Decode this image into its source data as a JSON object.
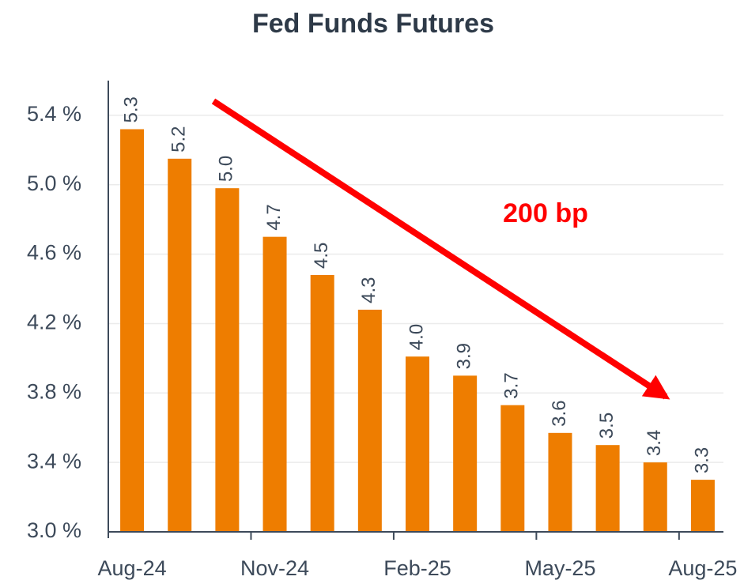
{
  "chart_data": {
    "type": "bar",
    "title": "Fed Funds Futures",
    "categories": [
      "Aug-24",
      null,
      null,
      "Nov-24",
      null,
      null,
      "Feb-25",
      null,
      null,
      "May-25",
      null,
      null,
      "Aug-25"
    ],
    "values": [
      5.32,
      5.15,
      4.98,
      4.7,
      4.48,
      4.28,
      4.01,
      3.9,
      3.73,
      3.57,
      3.5,
      3.4,
      3.3
    ],
    "value_labels": [
      "5.3",
      "5.2",
      "5.0",
      "4.7",
      "4.5",
      "4.3",
      "4.0",
      "3.9",
      "3.7",
      "3.6",
      "3.5",
      "3.4",
      "3.3"
    ],
    "color": "#ee7d00",
    "ylim": [
      3.0,
      5.6
    ],
    "yticks": [
      {
        "value": 3.0,
        "label": "3.0 %"
      },
      {
        "value": 3.4,
        "label": "3.4 %"
      },
      {
        "value": 3.8,
        "label": "3.8 %"
      },
      {
        "value": 4.2,
        "label": "4.2 %"
      },
      {
        "value": 4.6,
        "label": "4.6 %"
      },
      {
        "value": 5.0,
        "label": "5.0 %"
      },
      {
        "value": 5.4,
        "label": "5.4 %"
      }
    ],
    "grid": true,
    "annotation": "200 bp"
  }
}
